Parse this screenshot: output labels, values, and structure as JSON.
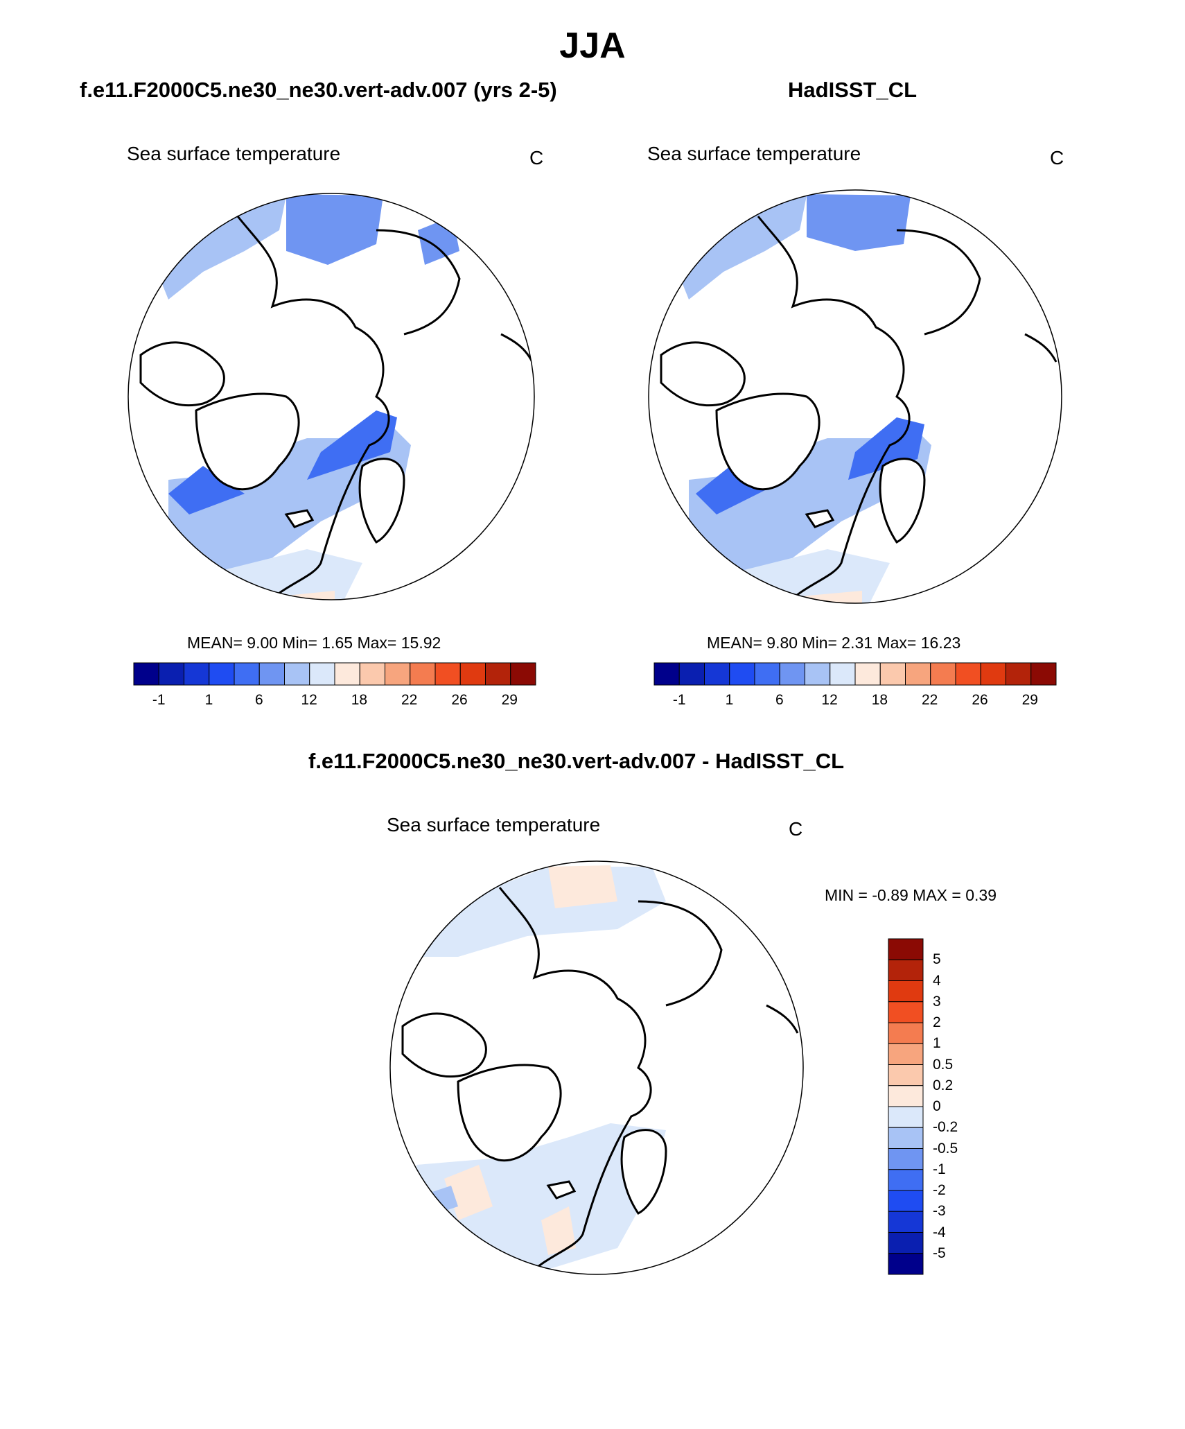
{
  "figure": {
    "season": "JJA",
    "top_left": {
      "title": "f.e11.F2000C5.ne30_ne30.vert-adv.007 (yrs 2-5)",
      "variable": "Sea surface temperature",
      "unit": "C",
      "stats": "MEAN=   9.00  Min=   1.65  Max=  15.92"
    },
    "top_right": {
      "title": "HadISST_CL",
      "variable": "Sea surface temperature",
      "unit": "C",
      "stats": "MEAN=   9.80  Min=   2.31  Max=  16.23"
    },
    "bottom": {
      "title": "f.e11.F2000C5.ne30_ne30.vert-adv.007 - HadISST_CL",
      "variable": "Sea surface temperature",
      "unit": "C",
      "stats": "MIN =  -0.89 MAX =   0.39"
    }
  },
  "colors": {
    "main_colorbar": [
      "#00008b",
      "#0a1fb0",
      "#1537d6",
      "#1f4cf2",
      "#3f6ef3",
      "#6f95f2",
      "#a8c3f5",
      "#dbe8fa",
      "#fde9dc",
      "#fbc9ad",
      "#f7a57e",
      "#f47c50",
      "#f14f22",
      "#e03a10",
      "#b3230a",
      "#8b0a04"
    ],
    "diff_colorbar": [
      "#00008b",
      "#0a1fb0",
      "#1537d6",
      "#1f4cf2",
      "#3f6ef3",
      "#6f95f2",
      "#a8c3f5",
      "#dbe8fa",
      "#fde9dc",
      "#fbc9ad",
      "#f7a57e",
      "#f47c50",
      "#f14f22",
      "#e03a10",
      "#b3230a",
      "#8b0a04"
    ],
    "land": "#ffffff",
    "coast": "#000000"
  },
  "main_ticks": [
    "-1",
    "1",
    "6",
    "12",
    "18",
    "22",
    "26",
    "29"
  ],
  "diff_ticks": [
    "5",
    "4",
    "3",
    "2",
    "1",
    "0.5",
    "0.2",
    "0",
    "-0.2",
    "-0.5",
    "-1",
    "-2",
    "-3",
    "-4",
    "-5"
  ]
}
